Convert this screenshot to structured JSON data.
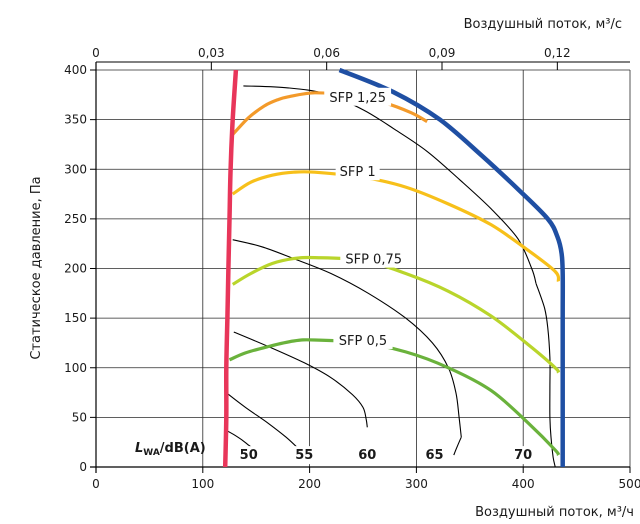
{
  "chart_data": {
    "type": "line",
    "title": "",
    "xlabel": "Воздушный поток, м³/ч",
    "x2label": "Воздушный поток, м³/с",
    "ylabel": "Статическое давление, Па",
    "xlim": [
      0,
      500
    ],
    "x2lim": [
      0,
      0.1389
    ],
    "ylim": [
      0,
      400
    ],
    "x_ticks": [
      "0",
      "100",
      "200",
      "300",
      "400",
      "500"
    ],
    "x_tick_values": [
      0,
      100,
      200,
      300,
      400,
      500
    ],
    "x2_ticks": [
      "0",
      "0,03",
      "0,06",
      "0,09",
      "0,12"
    ],
    "x2_tick_values": [
      0,
      0.03,
      0.06,
      0.09,
      0.12
    ],
    "y_ticks": [
      "0",
      "50",
      "100",
      "150",
      "200",
      "250",
      "300",
      "350",
      "400"
    ],
    "y_tick_values": [
      0,
      50,
      100,
      150,
      200,
      250,
      300,
      350,
      400
    ],
    "grid": true,
    "series": [
      {
        "role": "boundary",
        "color": "#e8365a",
        "points": [
          [
            131,
            400
          ],
          [
            128,
            350
          ],
          [
            126,
            300
          ],
          [
            125,
            250
          ],
          [
            124,
            200
          ],
          [
            123,
            150
          ],
          [
            122,
            100
          ],
          [
            122,
            50
          ],
          [
            121,
            0
          ]
        ]
      },
      {
        "role": "boundary",
        "color": "#1f4fa3",
        "points": [
          [
            228,
            400
          ],
          [
            278,
            378
          ],
          [
            322,
            350
          ],
          [
            362,
            313
          ],
          [
            395,
            280
          ],
          [
            423,
            250
          ],
          [
            432,
            232
          ],
          [
            436,
            215
          ],
          [
            437,
            195
          ],
          [
            437,
            150
          ],
          [
            437,
            50
          ],
          [
            437,
            0
          ]
        ]
      },
      {
        "name": "SFP 1,25",
        "color": "#f39a2a",
        "points": [
          [
            128,
            335
          ],
          [
            143,
            352
          ],
          [
            158,
            364
          ],
          [
            170,
            370
          ],
          [
            180,
            373
          ],
          [
            205,
            377
          ],
          [
            240,
            374
          ],
          [
            270,
            367
          ],
          [
            295,
            357
          ],
          [
            310,
            348
          ]
        ]
      },
      {
        "name": "SFP 1",
        "color": "#f7c01a",
        "points": [
          [
            128,
            275
          ],
          [
            145,
            287
          ],
          [
            165,
            294
          ],
          [
            185,
            297
          ],
          [
            205,
            297
          ],
          [
            250,
            292
          ],
          [
            290,
            282
          ],
          [
            330,
            265
          ],
          [
            370,
            244
          ],
          [
            405,
            218
          ],
          [
            430,
            197
          ],
          [
            433,
            187
          ]
        ]
      },
      {
        "name": "SFP 0,75",
        "color": "#b9d52b",
        "points": [
          [
            128,
            184
          ],
          [
            145,
            195
          ],
          [
            165,
            205
          ],
          [
            185,
            210
          ],
          [
            205,
            211
          ],
          [
            250,
            208
          ],
          [
            290,
            195
          ],
          [
            330,
            177
          ],
          [
            370,
            152
          ],
          [
            405,
            123
          ],
          [
            430,
            100
          ],
          [
            433,
            95
          ]
        ]
      },
      {
        "name": "SFP 0,5",
        "color": "#6ab23c",
        "points": [
          [
            125,
            108
          ],
          [
            140,
            115
          ],
          [
            160,
            121
          ],
          [
            185,
            127
          ],
          [
            205,
            128
          ],
          [
            250,
            125
          ],
          [
            290,
            116
          ],
          [
            330,
            100
          ],
          [
            370,
            77
          ],
          [
            405,
            44
          ],
          [
            430,
            17
          ],
          [
            433,
            12
          ]
        ]
      },
      {
        "role": "sound",
        "color": "#000000",
        "points": [
          [
            138,
            384
          ],
          [
            180,
            382
          ],
          [
            215,
            376
          ],
          [
            250,
            360
          ],
          [
            280,
            340
          ],
          [
            310,
            318
          ],
          [
            340,
            290
          ],
          [
            370,
            260
          ],
          [
            395,
            230
          ],
          [
            408,
            200
          ],
          [
            412,
            185
          ]
        ]
      },
      {
        "role": "sound",
        "color": "#000000",
        "points": [
          [
            128,
            229
          ],
          [
            155,
            222
          ],
          [
            185,
            210
          ],
          [
            220,
            195
          ],
          [
            255,
            175
          ],
          [
            290,
            150
          ],
          [
            315,
            125
          ],
          [
            330,
            100
          ],
          [
            337,
            75
          ],
          [
            340,
            50
          ],
          [
            342,
            30
          ]
        ]
      },
      {
        "role": "sound",
        "color": "#000000",
        "points": [
          [
            129,
            136
          ],
          [
            160,
            122
          ],
          [
            195,
            105
          ],
          [
            220,
            90
          ],
          [
            240,
            73
          ],
          [
            250,
            60
          ],
          [
            253,
            48
          ],
          [
            254,
            40
          ]
        ]
      },
      {
        "role": "sound",
        "color": "#000000",
        "points": [
          [
            123,
            74
          ],
          [
            140,
            60
          ],
          [
            160,
            45
          ],
          [
            178,
            30
          ],
          [
            190,
            18
          ],
          [
            195,
            12
          ]
        ]
      },
      {
        "role": "sound",
        "color": "#000000",
        "points": [
          [
            122,
            37
          ],
          [
            130,
            32
          ],
          [
            137,
            27
          ],
          [
            143,
            22
          ],
          [
            148,
            18
          ]
        ]
      },
      {
        "role": "sound",
        "color": "#000000",
        "points": [
          [
            412,
            185
          ],
          [
            420,
            160
          ],
          [
            423,
            140
          ],
          [
            425,
            110
          ],
          [
            425,
            80
          ],
          [
            425,
            50
          ],
          [
            426,
            30
          ],
          [
            428,
            10
          ],
          [
            430,
            0
          ]
        ]
      },
      {
        "role": "sound",
        "color": "#000000",
        "points": [
          [
            342,
            30
          ],
          [
            338,
            20
          ],
          [
            335,
            12
          ]
        ]
      }
    ],
    "annotations": [
      {
        "text": "SFP 1,25",
        "x": 245,
        "y": 372
      },
      {
        "text": "SFP 1",
        "x": 245,
        "y": 297
      },
      {
        "text": "SFP 0,75",
        "x": 260,
        "y": 209
      },
      {
        "text": "SFP 0,5",
        "x": 250,
        "y": 127
      },
      {
        "text": "50",
        "x": 143,
        "y": 16
      },
      {
        "text": "55",
        "x": 195,
        "y": 16
      },
      {
        "text": "60",
        "x": 254,
        "y": 16
      },
      {
        "text": "65",
        "x": 317,
        "y": 16
      },
      {
        "text": "70",
        "x": 400,
        "y": 16
      }
    ],
    "lwa_label": {
      "main": "L",
      "sub": "WA",
      "rest": "/dB(A)"
    }
  }
}
